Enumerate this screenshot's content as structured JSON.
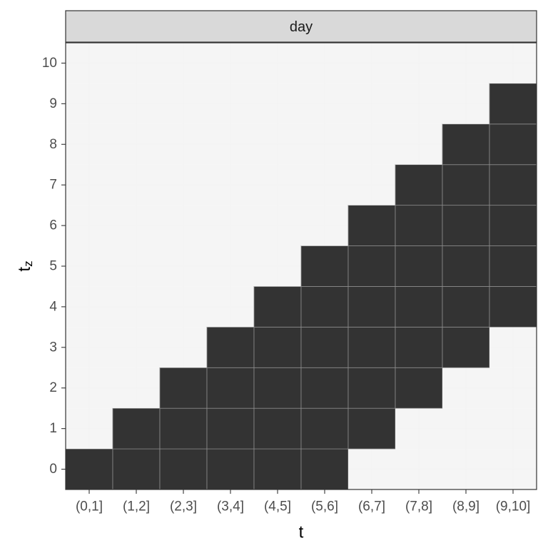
{
  "chart_data": {
    "type": "heatmap",
    "facet_label": "day",
    "xlabel": "t",
    "ylabel_main": "t",
    "ylabel_subscript": "z",
    "x_categories": [
      "(0,1]",
      "(1,2]",
      "(2,3]",
      "(3,4]",
      "(4,5]",
      "(5,6]",
      "(6,7]",
      "(7,8]",
      "(8,9]",
      "(9,10]"
    ],
    "y_ticks": [
      "0",
      "1",
      "2",
      "3",
      "4",
      "5",
      "6",
      "7",
      "8",
      "9",
      "10"
    ],
    "filled_ranges": [
      {
        "x": "(0,1]",
        "y_from": 0,
        "y_to": 0
      },
      {
        "x": "(1,2]",
        "y_from": 0,
        "y_to": 1
      },
      {
        "x": "(2,3]",
        "y_from": 0,
        "y_to": 2
      },
      {
        "x": "(3,4]",
        "y_from": 0,
        "y_to": 3
      },
      {
        "x": "(4,5]",
        "y_from": 0,
        "y_to": 4
      },
      {
        "x": "(5,6]",
        "y_from": 0,
        "y_to": 5
      },
      {
        "x": "(6,7]",
        "y_from": 1,
        "y_to": 6
      },
      {
        "x": "(7,8]",
        "y_from": 2,
        "y_to": 7
      },
      {
        "x": "(8,9]",
        "y_from": 3,
        "y_to": 8
      },
      {
        "x": "(9,10]",
        "y_from": 4,
        "y_to": 9
      }
    ],
    "colors": {
      "filled": "#333333",
      "empty": "#f4f4f4",
      "tile_border": "#8c8c8c"
    },
    "grid": true,
    "legend": "none"
  }
}
